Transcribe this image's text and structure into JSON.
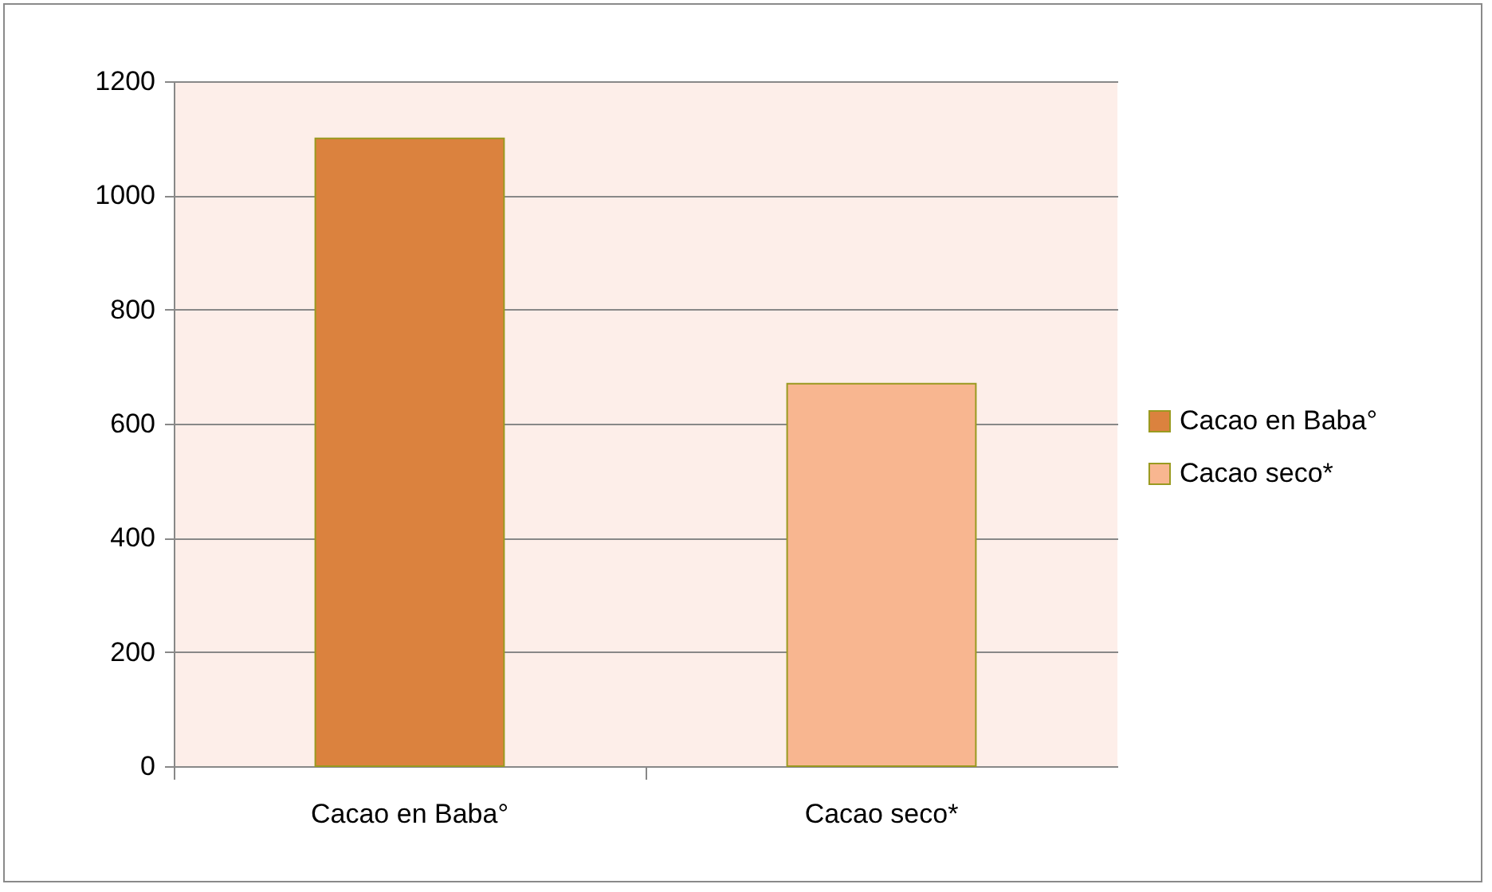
{
  "chart_data": {
    "type": "bar",
    "categories": [
      "Cacao en Baba°",
      "Cacao seco*"
    ],
    "series": [
      {
        "name": "Cacao en Baba°",
        "color": "#db823e",
        "values": [
          1100,
          null
        ]
      },
      {
        "name": "Cacao seco*",
        "color": "#f8b690",
        "values": [
          null,
          670
        ]
      }
    ],
    "ylim": [
      0,
      1200
    ],
    "yticks": [
      0,
      200,
      400,
      600,
      800,
      1000,
      1200
    ],
    "grid": "y",
    "legend": "right"
  }
}
